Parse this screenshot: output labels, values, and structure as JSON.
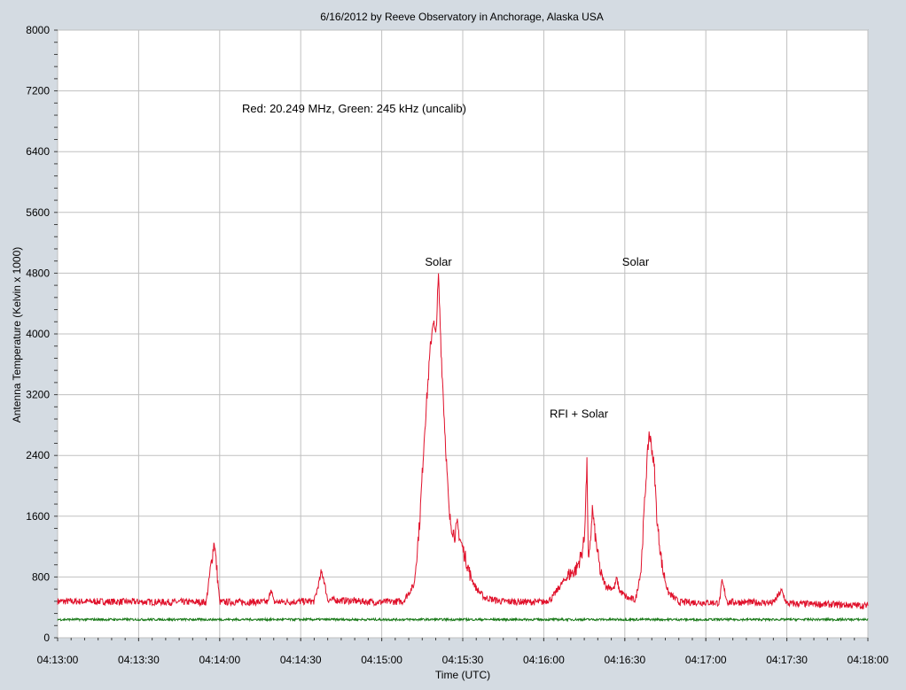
{
  "chart_data": {
    "type": "line",
    "title": "6/16/2012  by  Reeve Observatory  in  Anchorage, Alaska  USA",
    "xlabel": "Time (UTC)",
    "ylabel": "Antenna Temperature (Kelvin x 1000)",
    "x_tick_labels": [
      "04:13:00",
      "04:13:30",
      "04:14:00",
      "04:14:30",
      "04:15:00",
      "04:15:30",
      "04:16:00",
      "04:16:30",
      "04:17:00",
      "04:17:30",
      "04:18:00"
    ],
    "y_tick_labels": [
      "0",
      "800",
      "1600",
      "2400",
      "3200",
      "4000",
      "4800",
      "5600",
      "6400",
      "7200",
      "8000"
    ],
    "ylim": [
      0,
      8000
    ],
    "grid": true,
    "note": "Red: 20.249 MHz, Green: 245 kHz (uncalib)",
    "annotations": [
      {
        "text": "Solar",
        "time": "04:15:21",
        "value": 4900
      },
      {
        "text": "Solar",
        "time": "04:16:34",
        "value": 4900
      },
      {
        "text": "RFI + Solar",
        "time": "04:16:13",
        "value": 2900
      }
    ],
    "series": [
      {
        "color": "#e0102a",
        "baseline": 470,
        "points": [
          [
            "04:13:00",
            480
          ],
          [
            "04:13:40",
            470
          ],
          [
            "04:13:55",
            470
          ],
          [
            "04:13:58",
            1280
          ],
          [
            "04:14:00",
            470
          ],
          [
            "04:14:18",
            470
          ],
          [
            "04:14:19",
            660
          ],
          [
            "04:14:20",
            470
          ],
          [
            "04:14:35",
            480
          ],
          [
            "04:14:37",
            760
          ],
          [
            "04:14:38",
            870
          ],
          [
            "04:14:40",
            500
          ],
          [
            "04:14:58",
            470
          ],
          [
            "04:15:08",
            480
          ],
          [
            "04:15:12",
            700
          ],
          [
            "04:15:14",
            1500
          ],
          [
            "04:15:16",
            2800
          ],
          [
            "04:15:18",
            3800
          ],
          [
            "04:15:19",
            4200
          ],
          [
            "04:15:20",
            3950
          ],
          [
            "04:15:21",
            4750
          ],
          [
            "04:15:22",
            3800
          ],
          [
            "04:15:23",
            3000
          ],
          [
            "04:15:24",
            2300
          ],
          [
            "04:15:25",
            1600
          ],
          [
            "04:15:26",
            1450
          ],
          [
            "04:15:27",
            1350
          ],
          [
            "04:15:28",
            1480
          ],
          [
            "04:15:29",
            1300
          ],
          [
            "04:15:31",
            1050
          ],
          [
            "04:15:33",
            800
          ],
          [
            "04:15:35",
            650
          ],
          [
            "04:15:38",
            530
          ],
          [
            "04:15:44",
            480
          ],
          [
            "04:15:56",
            470
          ],
          [
            "04:16:00",
            470
          ],
          [
            "04:16:03",
            520
          ],
          [
            "04:16:06",
            680
          ],
          [
            "04:16:09",
            820
          ],
          [
            "04:16:12",
            900
          ],
          [
            "04:16:14",
            1100
          ],
          [
            "04:16:15",
            1300
          ],
          [
            "04:16:16",
            2280
          ],
          [
            "04:16:16.5",
            1000
          ],
          [
            "04:16:17",
            1100
          ],
          [
            "04:16:18",
            1700
          ],
          [
            "04:16:19",
            1350
          ],
          [
            "04:16:21",
            850
          ],
          [
            "04:16:23",
            680
          ],
          [
            "04:16:26",
            650
          ],
          [
            "04:16:27",
            780
          ],
          [
            "04:16:28",
            620
          ],
          [
            "04:16:31",
            520
          ],
          [
            "04:16:34",
            500
          ],
          [
            "04:16:36",
            900
          ],
          [
            "04:16:38",
            2200
          ],
          [
            "04:16:39",
            2700
          ],
          [
            "04:16:40",
            2500
          ],
          [
            "04:16:41",
            2200
          ],
          [
            "04:16:42",
            1500
          ],
          [
            "04:16:44",
            900
          ],
          [
            "04:16:46",
            600
          ],
          [
            "04:16:50",
            470
          ],
          [
            "04:17:05",
            460
          ],
          [
            "04:17:06",
            740
          ],
          [
            "04:17:08",
            470
          ],
          [
            "04:17:25",
            460
          ],
          [
            "04:17:28",
            620
          ],
          [
            "04:17:30",
            450
          ],
          [
            "04:17:45",
            440
          ],
          [
            "04:18:00",
            420
          ]
        ]
      },
      {
        "color": "#1a7a1a",
        "baseline": 240,
        "points": [
          [
            "04:13:00",
            240
          ],
          [
            "04:18:00",
            240
          ]
        ]
      }
    ]
  }
}
